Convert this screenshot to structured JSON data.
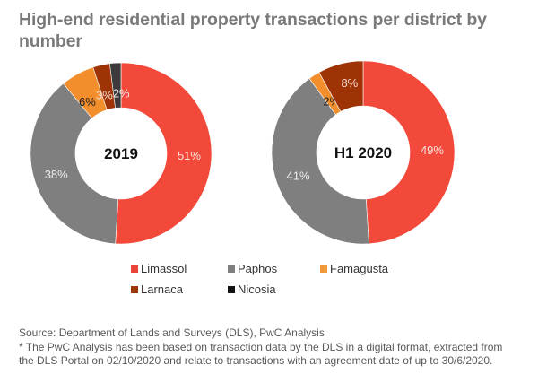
{
  "header": {
    "title": "High-end residential property transactions per district by number"
  },
  "chart_data": [
    {
      "type": "pie",
      "variant": "donut",
      "center_label": "2019",
      "categories": [
        "Limassol",
        "Paphos",
        "Famagusta",
        "Larnaca",
        "Nicosia"
      ],
      "values": [
        51,
        38,
        6,
        3,
        2
      ],
      "labels": [
        "51%",
        "38%",
        "6%",
        "3%",
        "2%"
      ],
      "unit": "%"
    },
    {
      "type": "pie",
      "variant": "donut",
      "center_label": "H1 2020",
      "categories": [
        "Limassol",
        "Paphos",
        "Famagusta",
        "Larnaca",
        "Nicosia"
      ],
      "values": [
        49,
        41,
        2,
        8,
        0
      ],
      "labels": [
        "49%",
        "41%",
        "2%",
        "8%",
        ""
      ],
      "unit": "%"
    }
  ],
  "series_colors": {
    "Limassol": "#f2493a",
    "Paphos": "#7f7f7f",
    "Famagusta": "#f28e2b",
    "Larnaca": "#9e3306",
    "Nicosia": "#3b3b3b"
  },
  "legend": {
    "placement": "bottom-center",
    "items": [
      {
        "label": "Limassol",
        "color": "#e8463a"
      },
      {
        "label": "Paphos",
        "color": "#808080"
      },
      {
        "label": "Famagusta",
        "color": "#f2963a"
      },
      {
        "label": "Larnaca",
        "color": "#9e3306"
      },
      {
        "label": "Nicosia",
        "color": "#111111"
      }
    ]
  },
  "footer": {
    "source": "Source: Department of Lands and Surveys (DLS), PwC Analysis",
    "note_line1": "* The PwC Analysis has been based on transaction data by the DLS in a digital format, extracted from",
    "note_line2": "the DLS Portal on 02/10/2020 and relate to transactions with an agreement date of up to 30/6/2020."
  }
}
